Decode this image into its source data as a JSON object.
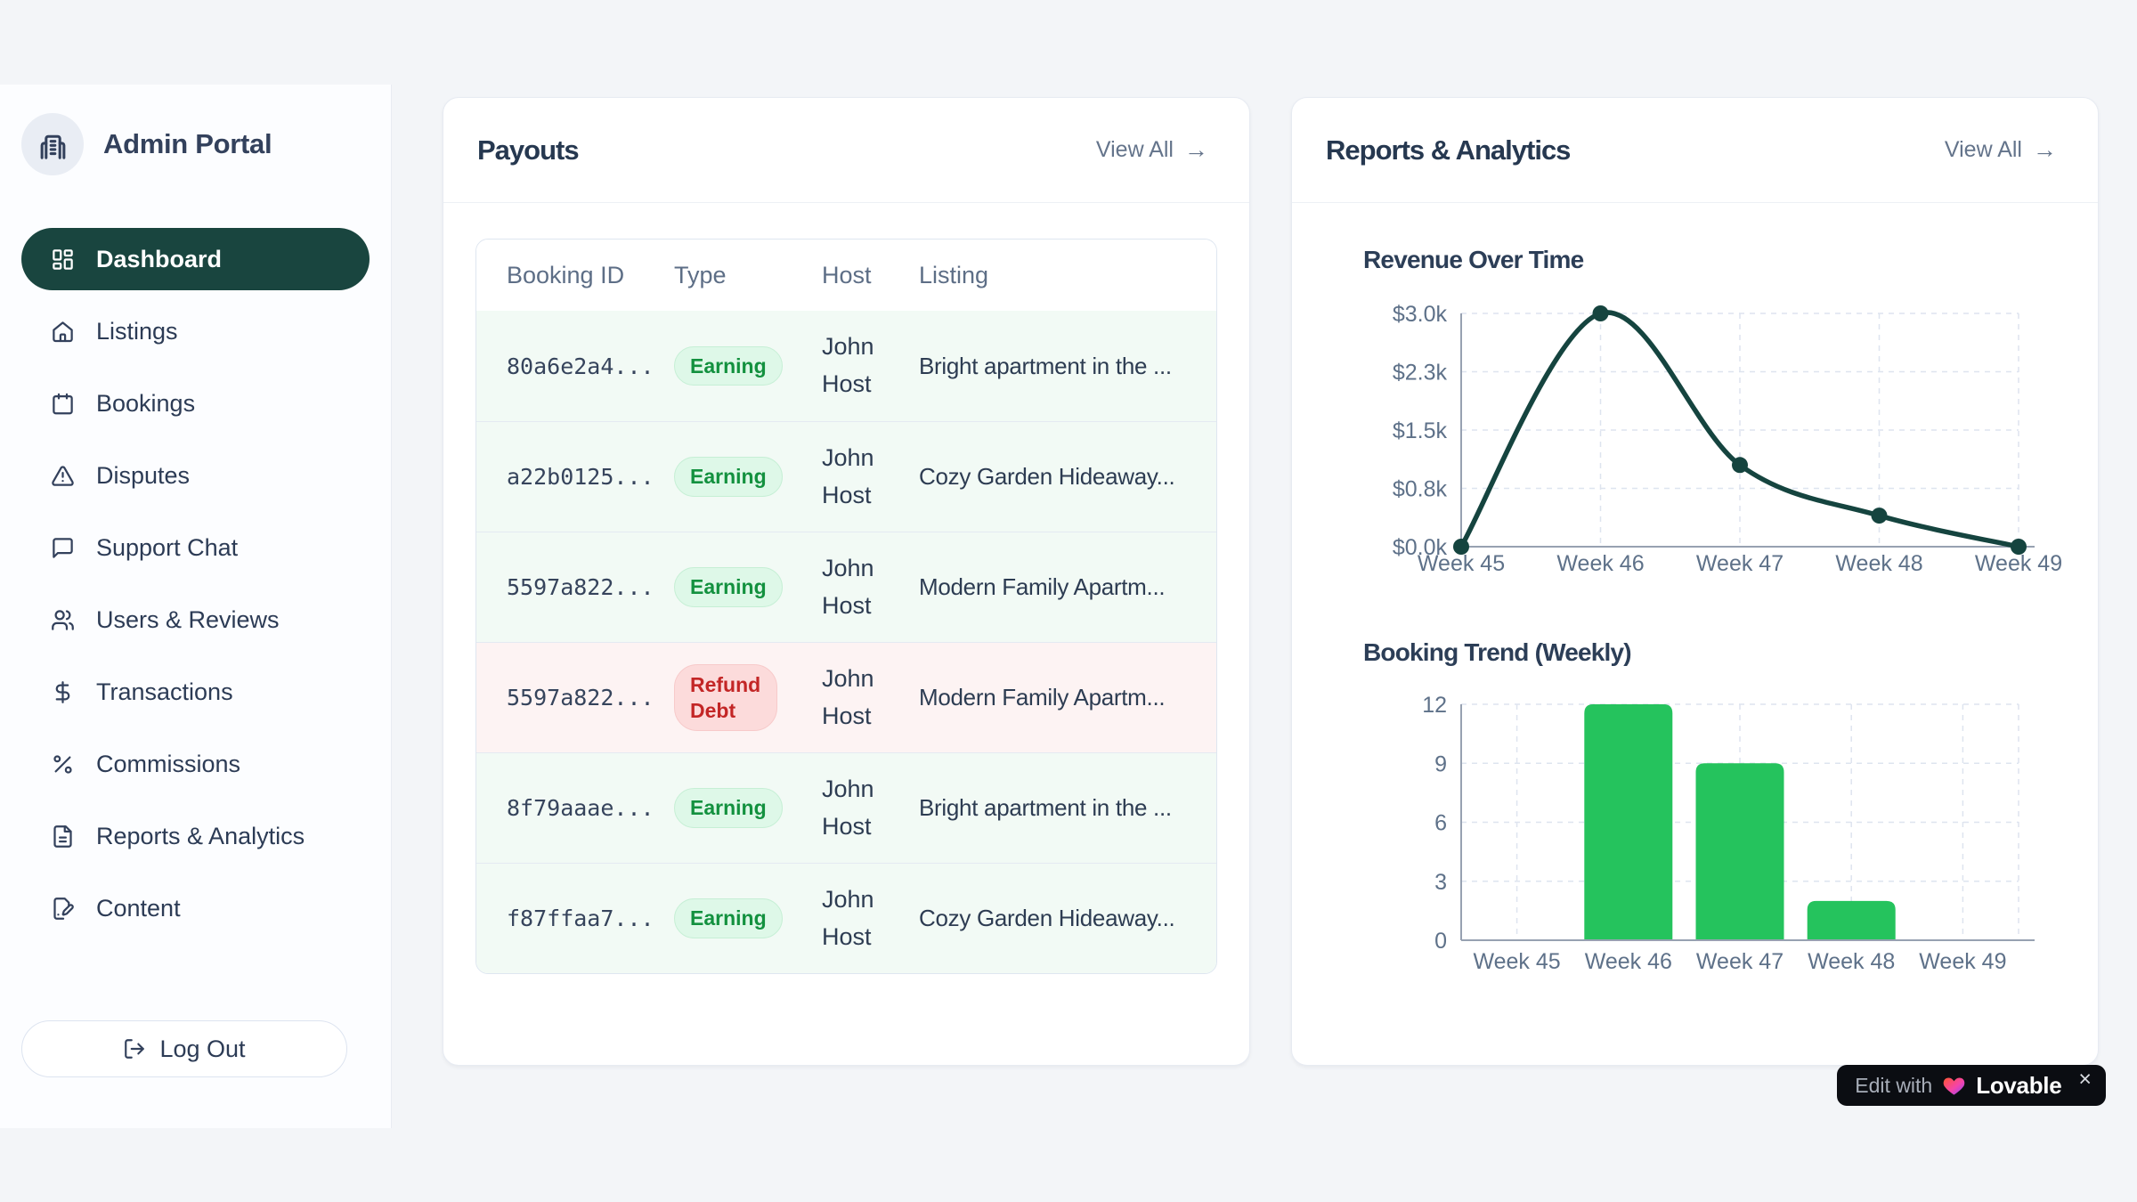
{
  "app": {
    "title": "Admin Portal"
  },
  "sidebar": {
    "items": [
      {
        "label": "Dashboard",
        "icon": "dashboard-grid",
        "active": true
      },
      {
        "label": "Listings",
        "icon": "home",
        "active": false
      },
      {
        "label": "Bookings",
        "icon": "calendar",
        "active": false
      },
      {
        "label": "Disputes",
        "icon": "alert-triangle",
        "active": false
      },
      {
        "label": "Support Chat",
        "icon": "chat-bubble",
        "active": false
      },
      {
        "label": "Users & Reviews",
        "icon": "users",
        "active": false
      },
      {
        "label": "Transactions",
        "icon": "dollar-sign",
        "active": false
      },
      {
        "label": "Commissions",
        "icon": "percent",
        "active": false
      },
      {
        "label": "Reports & Analytics",
        "icon": "file-text",
        "active": false
      },
      {
        "label": "Content",
        "icon": "file-pen",
        "active": false
      }
    ],
    "logout_label": "Log Out"
  },
  "payouts": {
    "title": "Payouts",
    "view_all_label": "View All",
    "view_all_arrow": "→",
    "table": {
      "columns": [
        "Booking ID",
        "Type",
        "Host",
        "Listing"
      ],
      "rows": [
        {
          "booking_id": "80a6e2a4...",
          "type": "Earning",
          "host": "John Host",
          "listing": "Bright apartment in the ...",
          "tone": "green"
        },
        {
          "booking_id": "a22b0125...",
          "type": "Earning",
          "host": "John Host",
          "listing": "Cozy Garden Hideaway...",
          "tone": "green"
        },
        {
          "booking_id": "5597a822...",
          "type": "Earning",
          "host": "John Host",
          "listing": "Modern Family Apartm...",
          "tone": "green"
        },
        {
          "booking_id": "5597a822...",
          "type": "Refund Debt",
          "host": "John Host",
          "listing": "Modern Family Apartm...",
          "tone": "red"
        },
        {
          "booking_id": "8f79aaae...",
          "type": "Earning",
          "host": "John Host",
          "listing": "Bright apartment in the ...",
          "tone": "green"
        },
        {
          "booking_id": "f87ffaa7...",
          "type": "Earning",
          "host": "John Host",
          "listing": "Cozy Garden Hideaway...",
          "tone": "green"
        }
      ]
    }
  },
  "reports": {
    "title": "Reports & Analytics",
    "view_all_label": "View All",
    "view_all_arrow": "→"
  },
  "chart_data": [
    {
      "type": "line",
      "title": "Revenue Over Time",
      "x": [
        "Week 45",
        "Week 46",
        "Week 47",
        "Week 48",
        "Week 49"
      ],
      "values": [
        0,
        3000,
        1050,
        400,
        0
      ],
      "y_ticks": [
        {
          "label": "$3.0k",
          "value": 3000
        },
        {
          "label": "$2.3k",
          "value": 2250
        },
        {
          "label": "$1.5k",
          "value": 1500
        },
        {
          "label": "$0.8k",
          "value": 750
        },
        {
          "label": "$0.0k",
          "value": 0
        }
      ],
      "ylim": [
        0,
        3000
      ],
      "grid": "dashed",
      "legend": "none",
      "line_color": "#15443f"
    },
    {
      "type": "bar",
      "title": "Booking Trend (Weekly)",
      "categories": [
        "Week 45",
        "Week 46",
        "Week 47",
        "Week 48",
        "Week 49"
      ],
      "values": [
        0,
        12,
        9,
        2,
        0
      ],
      "y_ticks": [
        {
          "label": "12",
          "value": 12
        },
        {
          "label": "9",
          "value": 9
        },
        {
          "label": "6",
          "value": 6
        },
        {
          "label": "3",
          "value": 3
        },
        {
          "label": "0",
          "value": 0
        }
      ],
      "ylim": [
        0,
        12
      ],
      "grid": "dashed",
      "legend": "none",
      "bar_color": "#25c35d"
    }
  ],
  "colors": {
    "sidebar_active": "#19453f",
    "line_chart": "#15443f",
    "bar_chart": "#25c35d",
    "badge_green_text": "#13913f",
    "badge_red_text": "#c32626"
  },
  "lovable_badge": {
    "prefix": "Edit with",
    "brand": "Lovable",
    "close": "×"
  }
}
